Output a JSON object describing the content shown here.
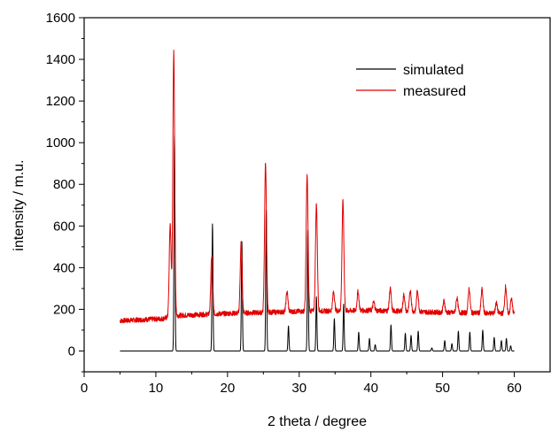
{
  "chart_data": {
    "type": "line",
    "title": "",
    "xlabel": "2 theta / degree",
    "ylabel": "intensity / m.u.",
    "xlim": [
      0,
      65
    ],
    "ylim": [
      -100,
      1600
    ],
    "xticks": [
      0,
      10,
      20,
      30,
      40,
      50,
      60
    ],
    "yticks": [
      0,
      200,
      400,
      600,
      800,
      1000,
      1200,
      1400,
      1600
    ],
    "grid": false,
    "legend_position": "top-right",
    "series": [
      {
        "name": "simulated",
        "color": "#000000",
        "baseline": 0,
        "x_range": [
          5,
          60
        ],
        "peaks": [
          {
            "x": 12.6,
            "y": 1035
          },
          {
            "x": 17.9,
            "y": 610
          },
          {
            "x": 22.0,
            "y": 525
          },
          {
            "x": 25.4,
            "y": 675
          },
          {
            "x": 28.5,
            "y": 120
          },
          {
            "x": 31.2,
            "y": 580
          },
          {
            "x": 32.4,
            "y": 260
          },
          {
            "x": 34.9,
            "y": 155
          },
          {
            "x": 36.2,
            "y": 225
          },
          {
            "x": 38.3,
            "y": 90
          },
          {
            "x": 39.8,
            "y": 60
          },
          {
            "x": 40.6,
            "y": 30
          },
          {
            "x": 42.8,
            "y": 125
          },
          {
            "x": 44.8,
            "y": 85
          },
          {
            "x": 45.6,
            "y": 75
          },
          {
            "x": 46.6,
            "y": 95
          },
          {
            "x": 48.5,
            "y": 15
          },
          {
            "x": 50.3,
            "y": 50
          },
          {
            "x": 51.3,
            "y": 35
          },
          {
            "x": 52.2,
            "y": 95
          },
          {
            "x": 53.8,
            "y": 90
          },
          {
            "x": 55.6,
            "y": 100
          },
          {
            "x": 57.2,
            "y": 65
          },
          {
            "x": 58.2,
            "y": 50
          },
          {
            "x": 58.9,
            "y": 60
          },
          {
            "x": 59.5,
            "y": 25
          }
        ]
      },
      {
        "name": "measured",
        "color": "#e00000",
        "baseline_points": [
          [
            5,
            145
          ],
          [
            11,
            155
          ],
          [
            12,
            165
          ],
          [
            13,
            170
          ],
          [
            20,
            180
          ],
          [
            30,
            190
          ],
          [
            40,
            195
          ],
          [
            50,
            185
          ],
          [
            60,
            180
          ]
        ],
        "noise_amplitude": 12,
        "x_range": [
          5,
          60
        ],
        "peaks": [
          {
            "x": 12.0,
            "y": 610
          },
          {
            "x": 12.5,
            "y": 1435
          },
          {
            "x": 17.8,
            "y": 455
          },
          {
            "x": 21.9,
            "y": 520
          },
          {
            "x": 25.3,
            "y": 905
          },
          {
            "x": 28.3,
            "y": 285
          },
          {
            "x": 31.1,
            "y": 840
          },
          {
            "x": 32.4,
            "y": 705
          },
          {
            "x": 34.8,
            "y": 285
          },
          {
            "x": 36.1,
            "y": 720
          },
          {
            "x": 38.2,
            "y": 285
          },
          {
            "x": 40.4,
            "y": 235
          },
          {
            "x": 42.7,
            "y": 300
          },
          {
            "x": 44.6,
            "y": 270
          },
          {
            "x": 45.5,
            "y": 290
          },
          {
            "x": 46.5,
            "y": 290
          },
          {
            "x": 50.2,
            "y": 240
          },
          {
            "x": 52.0,
            "y": 255
          },
          {
            "x": 53.7,
            "y": 300
          },
          {
            "x": 55.5,
            "y": 295
          },
          {
            "x": 57.5,
            "y": 230
          },
          {
            "x": 58.8,
            "y": 310
          },
          {
            "x": 59.6,
            "y": 250
          }
        ]
      }
    ]
  }
}
